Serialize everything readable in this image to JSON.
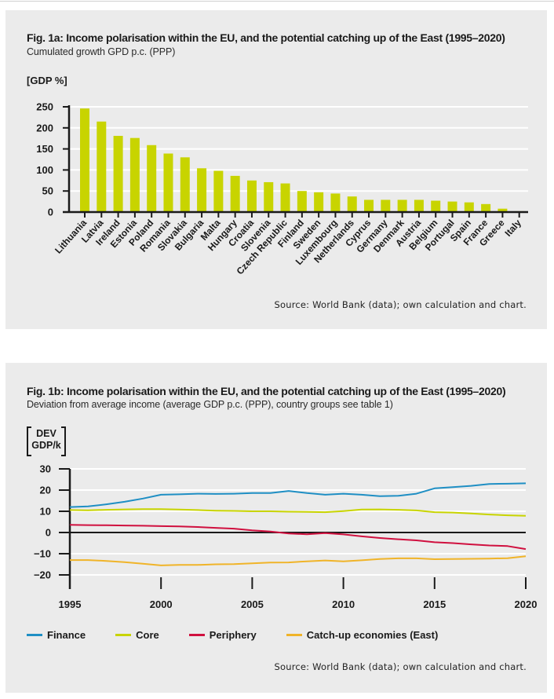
{
  "figure_a": {
    "title": "Fig. 1a: Income polarisation within the EU, and the potential catching up of the East (1995–2020)",
    "subtitle": "Cumulated growth GPD p.c. (PPP)",
    "unit_label": "[GDP %]",
    "source": "Source: World Bank (data); own calculation and chart."
  },
  "figure_b": {
    "title": "Fig. 1b: Income polarisation within the EU, and the potential catching up of the East (1995–2020)",
    "subtitle": "Deviation from average income (average GDP p.c. (PPP), country groups see table 1)",
    "unit_label_line1": "DEV",
    "unit_label_line2": "GDP/k",
    "source": "Source: World Bank (data); own calculation and chart."
  },
  "colors": {
    "bar": "#c8d400",
    "finance": "#1f8fc4",
    "core": "#c8d400",
    "periphery": "#d0103f",
    "catchup": "#f0b429",
    "panel_bg": "#ebebeb",
    "grid": "#ffffff",
    "axis": "#1a1a1a"
  },
  "chart_data": [
    {
      "type": "bar",
      "title": "Fig. 1a: Income polarisation within the EU, and the potential catching up of the East (1995–2020)",
      "subtitle": "Cumulated growth GPD p.c. (PPP)",
      "xlabel": "",
      "ylabel": "[GDP %]",
      "ylim": [
        0,
        250
      ],
      "yticks": [
        0,
        50,
        100,
        150,
        200,
        250
      ],
      "grid": true,
      "categories": [
        "Lithuania",
        "Latvia",
        "Ireland",
        "Estonia",
        "Poland",
        "Romania",
        "Slovakia",
        "Bulgaria",
        "Malta",
        "Hungary",
        "Croatia",
        "Slovenia",
        "Czech Republic",
        "Finland",
        "Sweden",
        "Luxembourg",
        "Netherlands",
        "Cyprus",
        "Germany",
        "Denmark",
        "Austria",
        "Belgium",
        "Portugal",
        "Spain",
        "France",
        "Greece",
        "Italy"
      ],
      "values": [
        246,
        215,
        181,
        176,
        159,
        139,
        130,
        104,
        98,
        86,
        75,
        71,
        68,
        50,
        47,
        44,
        37,
        29,
        29,
        29,
        29,
        27,
        25,
        23,
        19,
        8,
        2
      ]
    },
    {
      "type": "line",
      "title": "Fig. 1b: Income polarisation within the EU, and the potential catching up of the East (1995–2020)",
      "subtitle": "Deviation from average income (average GDP p.c. (PPP), country groups see table 1)",
      "xlabel": "",
      "ylabel": "DEV GDP/k",
      "ylim": [
        -20,
        30
      ],
      "yticks": [
        -20,
        -10,
        0,
        10,
        20,
        30
      ],
      "xlim": [
        1995,
        2020
      ],
      "xticks": [
        1995,
        2000,
        2005,
        2010,
        2015,
        2020
      ],
      "grid": true,
      "legend": "bottom",
      "x": [
        1995,
        1996,
        1997,
        1998,
        1999,
        2000,
        2001,
        2002,
        2003,
        2004,
        2005,
        2006,
        2007,
        2008,
        2009,
        2010,
        2011,
        2012,
        2013,
        2014,
        2015,
        2016,
        2017,
        2018,
        2019,
        2020
      ],
      "series": [
        {
          "name": "Finance",
          "values": [
            12.0,
            12.3,
            13.3,
            14.5,
            16.0,
            17.8,
            18.0,
            18.3,
            18.2,
            18.3,
            18.6,
            18.6,
            19.6,
            18.6,
            17.8,
            18.3,
            17.8,
            17.1,
            17.3,
            18.3,
            20.8,
            21.4,
            22.0,
            22.9,
            23.0,
            23.2
          ]
        },
        {
          "name": "Core",
          "values": [
            10.6,
            10.5,
            10.7,
            10.9,
            11.0,
            11.0,
            10.8,
            10.6,
            10.3,
            10.2,
            10.0,
            10.0,
            9.8,
            9.7,
            9.6,
            10.1,
            10.8,
            10.9,
            10.7,
            10.4,
            9.6,
            9.4,
            9.0,
            8.5,
            8.1,
            7.9
          ]
        },
        {
          "name": "Periphery",
          "values": [
            3.6,
            3.5,
            3.4,
            3.3,
            3.2,
            3.0,
            2.9,
            2.6,
            2.2,
            1.8,
            1.0,
            0.5,
            -0.5,
            -0.8,
            -0.3,
            -0.9,
            -1.8,
            -2.6,
            -3.2,
            -3.7,
            -4.6,
            -5.0,
            -5.6,
            -6.1,
            -6.4,
            -7.8
          ]
        },
        {
          "name": "Catch-up economies (East)",
          "values": [
            -13.0,
            -13.0,
            -13.4,
            -14.0,
            -14.7,
            -15.5,
            -15.3,
            -15.3,
            -15.0,
            -14.9,
            -14.5,
            -14.2,
            -14.1,
            -13.6,
            -13.2,
            -13.6,
            -13.1,
            -12.5,
            -12.2,
            -12.2,
            -12.6,
            -12.5,
            -12.4,
            -12.3,
            -12.1,
            -11.2
          ]
        }
      ]
    }
  ]
}
